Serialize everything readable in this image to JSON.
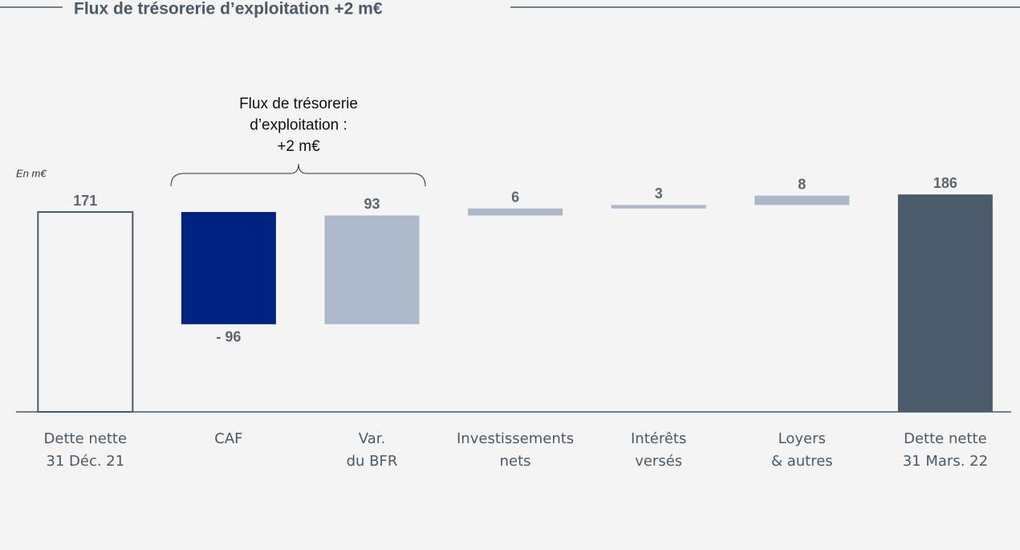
{
  "chart_data": {
    "type": "waterfall",
    "title": "Flux de trésorerie d’exploitation +2 m€",
    "unit_label": "En m€",
    "annotation": [
      "Flux de trésorerie",
      "d’exploitation :",
      "+2 m€"
    ],
    "categories": [
      [
        "Dette nette",
        "31 Déc. 21"
      ],
      [
        "CAF"
      ],
      [
        "Var.",
        "du BFR"
      ],
      [
        "Investissements",
        "nets"
      ],
      [
        "Intérêts",
        "versés"
      ],
      [
        "Loyers",
        "& autres"
      ],
      [
        "Dette nette",
        "31 Mars. 22"
      ]
    ],
    "values": [
      171,
      -96,
      93,
      6,
      3,
      8,
      186
    ],
    "value_labels": [
      "171",
      "- 96",
      "93",
      "6",
      "3",
      "8",
      "186"
    ],
    "measure": [
      "absolute",
      "relative",
      "relative",
      "relative",
      "relative",
      "relative",
      "absolute"
    ],
    "colors": [
      "none",
      "#00237f",
      "#adb8c9",
      "#adb8c9",
      "#adb8c9",
      "#adb8c9",
      "#4a5a68"
    ]
  }
}
